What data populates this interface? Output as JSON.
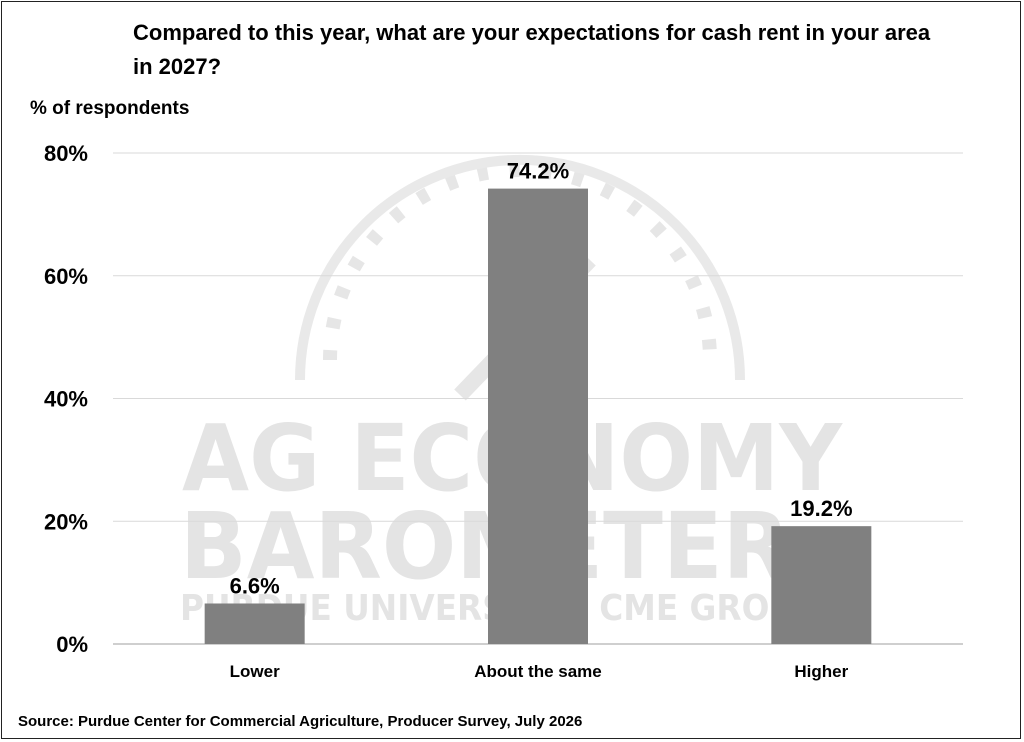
{
  "chart_data": {
    "type": "bar",
    "title": "Compared to this year, what are your expectations for cash rent in your area in 2027?",
    "ylabel": "% of respondents",
    "xlabel": "",
    "categories": [
      "Lower",
      "About the same",
      "Higher"
    ],
    "values": [
      6.6,
      74.2,
      19.2
    ],
    "data_labels": [
      "6.6%",
      "74.2%",
      "19.2%"
    ],
    "ylim": [
      0,
      80
    ],
    "yticks": [
      0,
      20,
      40,
      60,
      80
    ],
    "ytick_labels": [
      "0%",
      "20%",
      "40%",
      "60%",
      "80%"
    ],
    "grid": true,
    "legend": "none",
    "bar_color": "#808080",
    "gridline_color": "#d9d9d9"
  },
  "source": "Source: Purdue Center for Commercial Agriculture, Producer Survey, July 2026",
  "watermark": {
    "line1": "AG ECONOMY",
    "line2": "BAROMETER",
    "line3": "PURDUE UNIVERSITY · CME GROUP",
    "color": "#e4e4e4"
  }
}
